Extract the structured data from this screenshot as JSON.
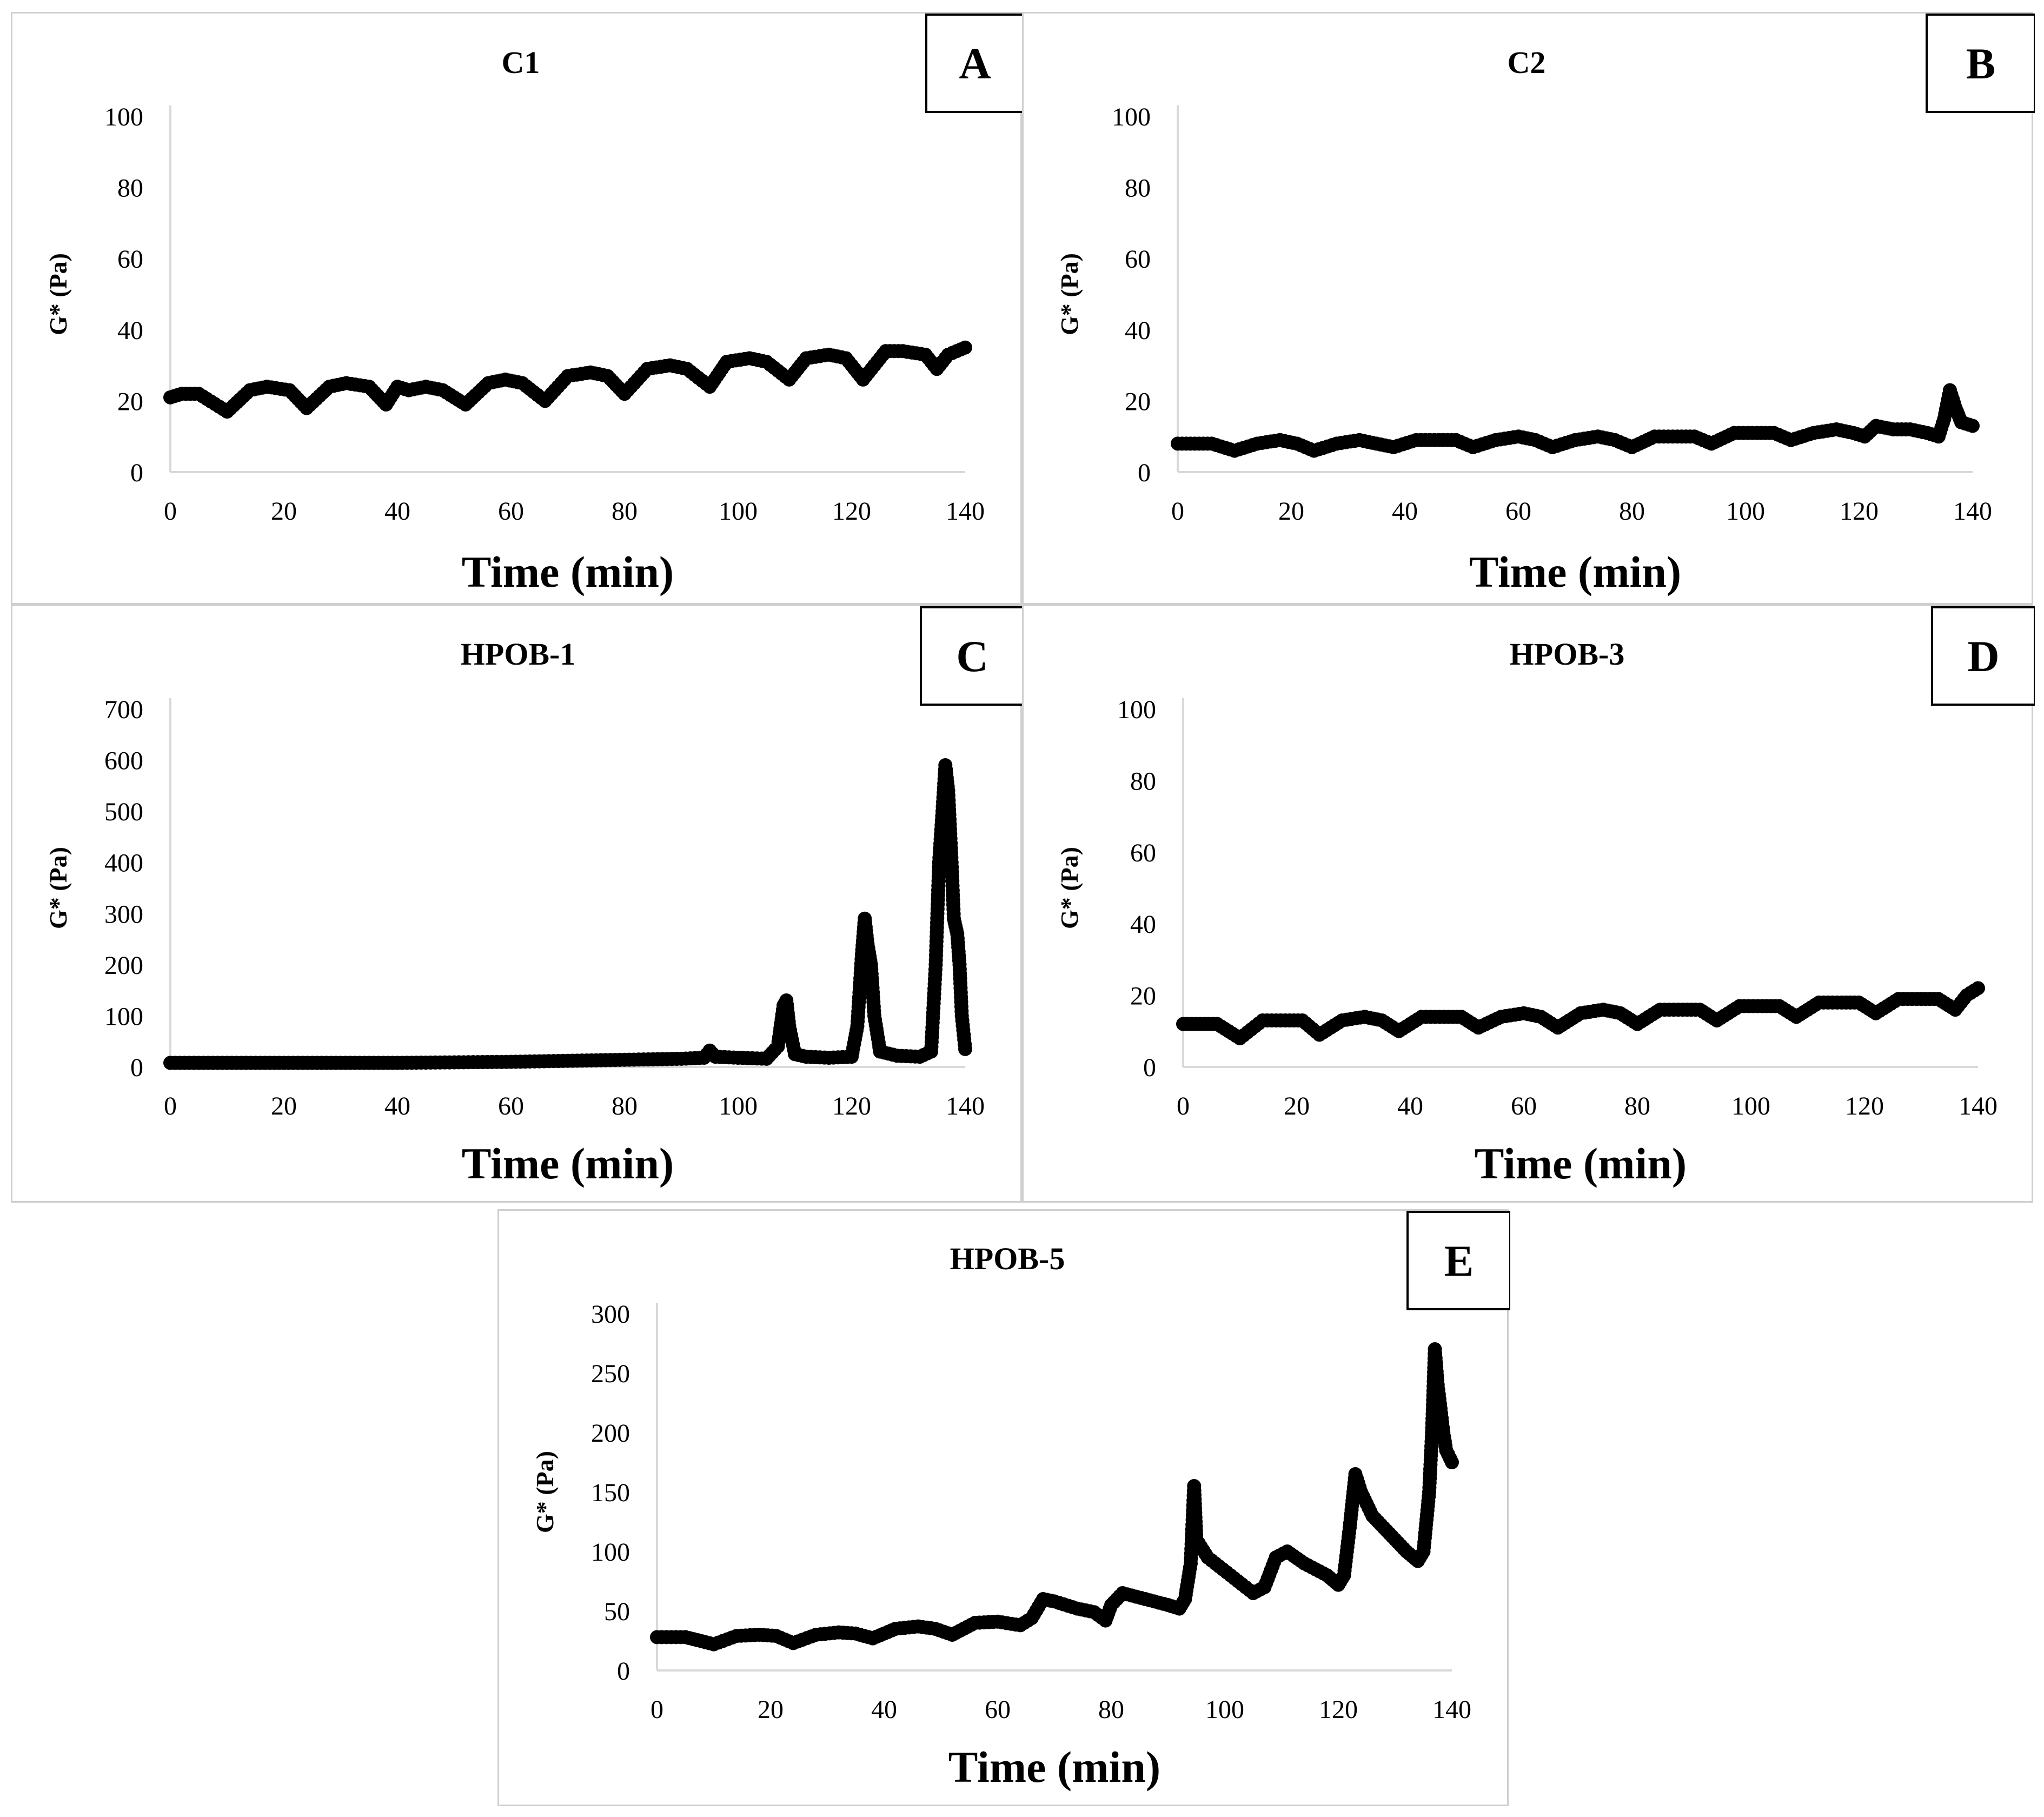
{
  "chart_data": [
    {
      "id": "A",
      "type": "scatter",
      "title": "C1",
      "letter": "A",
      "xlabel": "Time (min)",
      "ylabel": "G* (Pa)",
      "xlim": [
        0,
        140
      ],
      "ylim": [
        0,
        100
      ],
      "xticks": [
        0,
        20,
        40,
        60,
        80,
        100,
        120,
        140
      ],
      "yticks": [
        0,
        20,
        40,
        60,
        80,
        100
      ],
      "series": [
        {
          "name": "C1",
          "x": [
            0,
            2,
            5,
            10,
            14,
            17,
            21,
            24,
            28,
            31,
            35,
            38,
            40,
            42,
            45,
            48,
            52,
            56,
            59,
            62,
            66,
            70,
            74,
            77,
            80,
            84,
            88,
            91,
            95,
            98,
            102,
            105,
            109,
            112,
            116,
            119,
            122,
            126,
            129,
            133,
            135,
            137,
            140
          ],
          "y": [
            21,
            22,
            22,
            17,
            23,
            24,
            23,
            18,
            24,
            25,
            24,
            19,
            24,
            23,
            24,
            23,
            19,
            25,
            26,
            25,
            20,
            27,
            28,
            27,
            22,
            29,
            30,
            29,
            24,
            31,
            32,
            31,
            26,
            32,
            33,
            32,
            26,
            34,
            34,
            33,
            29,
            33,
            35
          ]
        }
      ]
    },
    {
      "id": "B",
      "type": "scatter",
      "title": "C2",
      "letter": "B",
      "xlabel": "Time (min)",
      "ylabel": "G* (Pa)",
      "xlim": [
        0,
        140
      ],
      "ylim": [
        0,
        100
      ],
      "xticks": [
        0,
        20,
        40,
        60,
        80,
        100,
        120,
        140
      ],
      "yticks": [
        0,
        20,
        40,
        60,
        80,
        100
      ],
      "series": [
        {
          "name": "C2",
          "x": [
            0,
            3,
            6,
            10,
            14,
            18,
            21,
            24,
            28,
            32,
            35,
            38,
            42,
            46,
            49,
            52,
            56,
            60,
            63,
            66,
            70,
            74,
            77,
            80,
            84,
            88,
            91,
            94,
            98,
            102,
            105,
            108,
            112,
            116,
            119,
            121,
            123,
            126,
            129,
            132,
            134,
            135,
            136,
            137,
            138,
            140
          ],
          "y": [
            8,
            8,
            8,
            6,
            8,
            9,
            8,
            6,
            8,
            9,
            8,
            7,
            9,
            9,
            9,
            7,
            9,
            10,
            9,
            7,
            9,
            10,
            9,
            7,
            10,
            10,
            10,
            8,
            11,
            11,
            11,
            9,
            11,
            12,
            11,
            10,
            13,
            12,
            12,
            11,
            10,
            15,
            23,
            18,
            14,
            13
          ]
        }
      ]
    },
    {
      "id": "C",
      "type": "scatter",
      "title": "HPOB-1",
      "letter": "C",
      "xlabel": "Time (min)",
      "ylabel": "G* (Pa)",
      "xlim": [
        0,
        140
      ],
      "ylim": [
        0,
        700
      ],
      "xticks": [
        0,
        20,
        40,
        60,
        80,
        100,
        120,
        140
      ],
      "yticks": [
        0,
        100,
        200,
        300,
        400,
        500,
        600,
        700
      ],
      "series": [
        {
          "name": "HPOB-1",
          "x": [
            0,
            10,
            20,
            30,
            40,
            50,
            60,
            70,
            80,
            90,
            94,
            95,
            96,
            100,
            105,
            107,
            108,
            108.5,
            109,
            110,
            112,
            116,
            120,
            121,
            121.8,
            122.3,
            122.8,
            123.4,
            124,
            125,
            128,
            132,
            134,
            134.8,
            135.4,
            136,
            136.5,
            137,
            137.6,
            138,
            138.6,
            139,
            139.4,
            140
          ],
          "y": [
            8,
            8,
            8,
            8,
            8,
            9,
            10,
            12,
            14,
            16,
            18,
            32,
            20,
            18,
            16,
            40,
            120,
            130,
            80,
            25,
            20,
            18,
            20,
            80,
            220,
            290,
            240,
            200,
            100,
            30,
            22,
            20,
            30,
            200,
            400,
            500,
            590,
            540,
            400,
            290,
            260,
            200,
            100,
            35
          ]
        }
      ]
    },
    {
      "id": "D",
      "type": "scatter",
      "title": "HPOB-3",
      "letter": "D",
      "xlabel": "Time (min)",
      "ylabel": "G* (Pa)",
      "xlim": [
        0,
        140
      ],
      "ylim": [
        0,
        100
      ],
      "xticks": [
        0,
        20,
        40,
        60,
        80,
        100,
        120,
        140
      ],
      "yticks": [
        0,
        20,
        40,
        60,
        80,
        100
      ],
      "series": [
        {
          "name": "HPOB-3",
          "x": [
            0,
            3,
            6,
            10,
            14,
            18,
            21,
            24,
            28,
            32,
            35,
            38,
            42,
            46,
            49,
            52,
            56,
            60,
            63,
            66,
            70,
            74,
            77,
            80,
            84,
            88,
            91,
            94,
            98,
            102,
            105,
            108,
            112,
            116,
            119,
            122,
            126,
            130,
            133,
            136,
            138,
            140
          ],
          "y": [
            12,
            12,
            12,
            8,
            13,
            13,
            13,
            9,
            13,
            14,
            13,
            10,
            14,
            14,
            14,
            11,
            14,
            15,
            14,
            11,
            15,
            16,
            15,
            12,
            16,
            16,
            16,
            13,
            17,
            17,
            17,
            14,
            18,
            18,
            18,
            15,
            19,
            19,
            19,
            16,
            20,
            22
          ]
        }
      ]
    },
    {
      "id": "E",
      "type": "scatter",
      "title": "HPOB-5",
      "letter": "E",
      "xlabel": "Time (min)",
      "ylabel": "G* (Pa)",
      "xlim": [
        0,
        140
      ],
      "ylim": [
        0,
        300
      ],
      "xticks": [
        0,
        20,
        40,
        60,
        80,
        100,
        120,
        140
      ],
      "yticks": [
        0,
        50,
        100,
        150,
        200,
        250,
        300
      ],
      "series": [
        {
          "name": "HPOB-5",
          "x": [
            0,
            5,
            10,
            14,
            18,
            21,
            24,
            28,
            32,
            35,
            38,
            42,
            46,
            49,
            52,
            56,
            60,
            64,
            66,
            68,
            70,
            74,
            77,
            79,
            80,
            82,
            86,
            90,
            92,
            93,
            94,
            94.6,
            95,
            97,
            101,
            105,
            107,
            109,
            111,
            114,
            118,
            120,
            121,
            122,
            123,
            124,
            126,
            129,
            132,
            134,
            135,
            136,
            136.5,
            137,
            137.5,
            138,
            138.5,
            139,
            140
          ],
          "y": [
            28,
            28,
            22,
            29,
            30,
            29,
            23,
            30,
            32,
            31,
            27,
            35,
            37,
            35,
            30,
            40,
            41,
            38,
            44,
            60,
            58,
            52,
            49,
            42,
            55,
            65,
            60,
            55,
            52,
            60,
            90,
            155,
            110,
            95,
            80,
            65,
            70,
            95,
            100,
            90,
            80,
            72,
            80,
            120,
            165,
            150,
            130,
            115,
            100,
            92,
            100,
            150,
            200,
            270,
            240,
            220,
            200,
            185,
            175
          ]
        }
      ]
    }
  ]
}
